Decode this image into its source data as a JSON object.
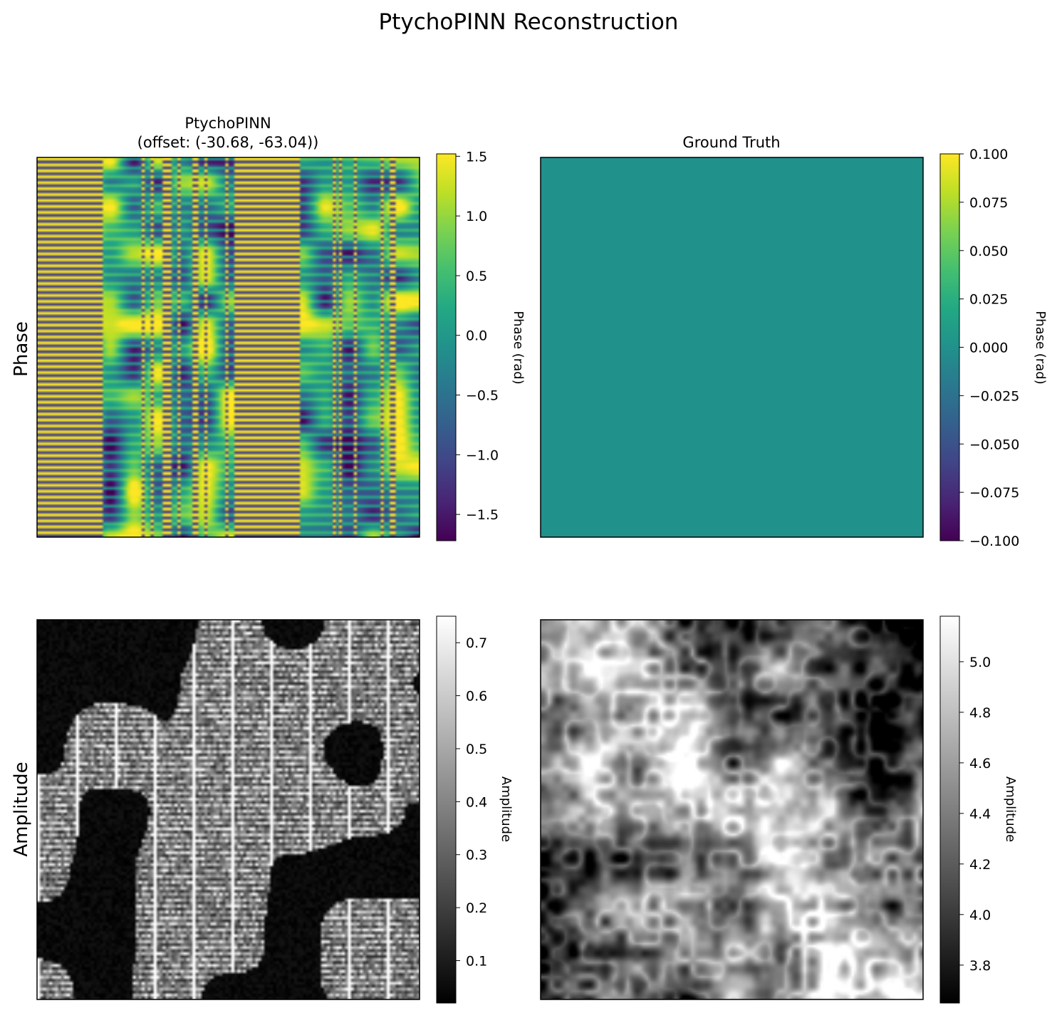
{
  "figure": {
    "title": "PtychoPINN Reconstruction",
    "row_labels": [
      "Phase",
      "Amplitude"
    ]
  },
  "chart_data": [
    {
      "type": "heatmap",
      "panel": "phase-reconstruction",
      "title": "PtychoPINN\n(offset: (-30.68, -63.04))",
      "title_lines": [
        "PtychoPINN",
        "(offset: (-30.68, -63.04))"
      ],
      "colormap": "viridis",
      "colorbar": {
        "label": "Phase (rad)",
        "range": [
          -1.72,
          1.52
        ],
        "ticks": [
          1.5,
          1.0,
          0.5,
          0.0,
          -0.5,
          -1.0,
          -1.5
        ],
        "tick_labels": [
          "1.5",
          "1.0",
          "0.5",
          "0.0",
          "−0.5",
          "−1.0",
          "−1.5"
        ]
      },
      "pattern": "banded-stripes"
    },
    {
      "type": "heatmap",
      "panel": "phase-ground-truth",
      "title": "Ground Truth",
      "title_lines": [
        "Ground Truth"
      ],
      "colormap": "viridis",
      "uniform_value": 0.0,
      "colorbar": {
        "label": "Phase (rad)",
        "range": [
          -0.1,
          0.1
        ],
        "ticks": [
          0.1,
          0.075,
          0.05,
          0.025,
          0.0,
          -0.025,
          -0.05,
          -0.075,
          -0.1
        ],
        "tick_labels": [
          "0.100",
          "0.075",
          "0.050",
          "0.025",
          "0.000",
          "−0.025",
          "−0.050",
          "−0.075",
          "−0.100"
        ]
      },
      "pattern": "uniform"
    },
    {
      "type": "heatmap",
      "panel": "amplitude-reconstruction",
      "title": "",
      "title_lines": [],
      "colormap": "gray",
      "colorbar": {
        "label": "Amplitude",
        "range": [
          0.02,
          0.75
        ],
        "ticks": [
          0.7,
          0.6,
          0.5,
          0.4,
          0.3,
          0.2,
          0.1
        ],
        "tick_labels": [
          "0.7",
          "0.6",
          "0.5",
          "0.4",
          "0.3",
          "0.2",
          "0.1"
        ]
      },
      "pattern": "patch-stripes"
    },
    {
      "type": "heatmap",
      "panel": "amplitude-ground-truth",
      "title": "",
      "title_lines": [],
      "colormap": "gray",
      "colorbar": {
        "label": "Amplitude",
        "range": [
          3.65,
          5.18
        ],
        "ticks": [
          5.0,
          4.8,
          4.6,
          4.4,
          4.2,
          4.0,
          3.8
        ],
        "tick_labels": [
          "5.0",
          "4.8",
          "4.6",
          "4.4",
          "4.2",
          "4.0",
          "3.8"
        ]
      },
      "pattern": "fibrous-network"
    }
  ]
}
